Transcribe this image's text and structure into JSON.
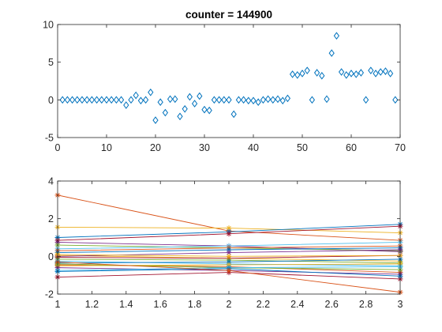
{
  "figure": {
    "background": "#ffffff"
  },
  "chart_data": [
    {
      "type": "scatter",
      "title": "counter = 144900",
      "xlabel": "",
      "ylabel": "",
      "xlim": [
        0,
        70
      ],
      "ylim": [
        -5,
        10
      ],
      "xticks": [
        0,
        10,
        20,
        30,
        40,
        50,
        60,
        70
      ],
      "yticks": [
        -5,
        0,
        5,
        10
      ],
      "grid": false,
      "marker": "diamond",
      "marker_color": "#0072BD",
      "series": [
        {
          "x": [
            1,
            2,
            3,
            4,
            5,
            6,
            7,
            8,
            9,
            10,
            11,
            12,
            13,
            14,
            15,
            16,
            17,
            18,
            19,
            20,
            21,
            22,
            23,
            24,
            25,
            26,
            27,
            28,
            29,
            30,
            31,
            32,
            33,
            34,
            35,
            36,
            37,
            38,
            39,
            40,
            41,
            42,
            43,
            44,
            45,
            46,
            47,
            48,
            49,
            50,
            51,
            52,
            53,
            54,
            55,
            56,
            57,
            58,
            59,
            60,
            61,
            62,
            63,
            64,
            65,
            66,
            67,
            68,
            69
          ],
          "y": [
            0,
            0,
            0,
            0,
            0,
            0,
            0,
            0,
            0,
            0,
            0,
            0,
            0,
            -0.7,
            0,
            0.6,
            -0.1,
            0,
            1,
            -2.7,
            -0.3,
            -1.7,
            0.1,
            0.1,
            -2.2,
            -1.2,
            0.4,
            -0.5,
            0.5,
            -1.3,
            -1.4,
            0,
            0,
            0,
            0,
            -1.9,
            0,
            0,
            -0.1,
            -0.1,
            -0.3,
            0,
            0.1,
            0,
            0.1,
            -0.1,
            0.2,
            3.4,
            3.3,
            3.5,
            3.9,
            0,
            3.6,
            3.2,
            0.1,
            6.2,
            8.5,
            3.7,
            3.3,
            3.5,
            3.4,
            3.6,
            0,
            3.9,
            3.5,
            3.7,
            3.8,
            3.5,
            0
          ]
        }
      ]
    },
    {
      "type": "line",
      "title": "",
      "xlabel": "",
      "ylabel": "",
      "xlim": [
        1,
        3
      ],
      "ylim": [
        -2,
        4
      ],
      "xticks": [
        1,
        1.2,
        1.4,
        1.6,
        1.8,
        2,
        2.2,
        2.4,
        2.6,
        2.8,
        3
      ],
      "yticks": [
        -2,
        0,
        2,
        4
      ],
      "grid": false,
      "marker": "asterisk",
      "x": [
        1,
        2,
        3
      ],
      "series": [
        {
          "color": "#D95319",
          "values": [
            3.25,
            1.35,
            0.85
          ]
        },
        {
          "color": "#EDB120",
          "values": [
            1.55,
            1.5,
            1.25
          ]
        },
        {
          "color": "#0072BD",
          "values": [
            1.0,
            1.3,
            1.7
          ]
        },
        {
          "color": "#A2142F",
          "values": [
            0.85,
            1.2,
            1.6
          ]
        },
        {
          "color": "#7E2F8E",
          "values": [
            0.75,
            0.55,
            0.25
          ]
        },
        {
          "color": "#77AC30",
          "values": [
            0.6,
            0.45,
            0.3
          ]
        },
        {
          "color": "#4DBEEE",
          "values": [
            0.4,
            0.55,
            0.75
          ]
        },
        {
          "color": "#D95319",
          "values": [
            0.3,
            0.45,
            0.55
          ]
        },
        {
          "color": "#0072BD",
          "values": [
            0.2,
            0.35,
            0.45
          ]
        },
        {
          "color": "#EDB120",
          "values": [
            0.05,
            -0.1,
            -0.25
          ]
        },
        {
          "color": "#7E2F8E",
          "values": [
            0.0,
            0.2,
            0.35
          ]
        },
        {
          "color": "#A2142F",
          "values": [
            -0.05,
            -0.1,
            0.05
          ]
        },
        {
          "color": "#77AC30",
          "values": [
            -0.15,
            -0.2,
            -0.35
          ]
        },
        {
          "color": "#4DBEEE",
          "values": [
            -0.25,
            -0.4,
            -0.5
          ]
        },
        {
          "color": "#0072BD",
          "values": [
            -0.35,
            -0.3,
            -0.15
          ]
        },
        {
          "color": "#D95319",
          "values": [
            -0.45,
            -0.55,
            -0.85
          ]
        },
        {
          "color": "#EDB120",
          "values": [
            -0.5,
            -0.45,
            -0.4
          ]
        },
        {
          "color": "#7E2F8E",
          "values": [
            -0.6,
            -0.75,
            -0.95
          ]
        },
        {
          "color": "#77AC30",
          "values": [
            -0.4,
            -0.6,
            -0.7
          ]
        },
        {
          "color": "#4DBEEE",
          "values": [
            -0.75,
            -0.6,
            -0.55
          ]
        },
        {
          "color": "#A2142F",
          "values": [
            -1.1,
            -0.85,
            -1.2
          ]
        },
        {
          "color": "#0072BD",
          "values": [
            -0.8,
            -0.65,
            -1.05
          ]
        },
        {
          "color": "#D95319",
          "values": [
            -0.3,
            -0.75,
            -1.9
          ]
        },
        {
          "color": "#EDB120",
          "values": [
            0.1,
            0.0,
            0.05
          ]
        }
      ]
    }
  ]
}
